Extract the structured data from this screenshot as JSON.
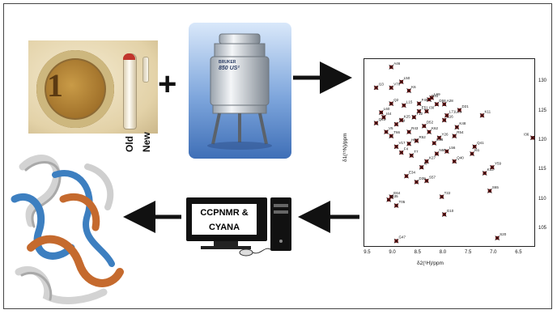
{
  "tubes": {
    "old_label": "Old",
    "new_label": "New"
  },
  "coin": {
    "digit": "1"
  },
  "magnet": {
    "brand": "BRUKER",
    "model": "850 US²"
  },
  "plus_sign": "+",
  "software_box": {
    "line1": "CCPNMR &",
    "line2": "CYANA"
  },
  "colors": {
    "arrow": "#111111",
    "peak": "#8b1a1a",
    "helix": "#3d7fc0",
    "strand": "#c56a2e",
    "coil": "#d6d6d6"
  },
  "chart_data": {
    "type": "scatter",
    "xlabel": "δ2(¹H)/ppm",
    "ylabel": "δ1(¹⁵N)/ppm",
    "xlim": [
      9.6,
      6.2
    ],
    "ylim": [
      134,
      102
    ],
    "xticks": [
      "9.5",
      "9.0",
      "8.5",
      "8.0",
      "7.5",
      "7.0",
      "6.5"
    ],
    "yticks": [
      "105",
      "110",
      "115",
      "120",
      "125",
      "130"
    ],
    "peaks": [
      {
        "label": "S20",
        "x": 6.95,
        "y": 103.5
      },
      {
        "label": "G47",
        "x": 8.95,
        "y": 103.0
      },
      {
        "label": "G10",
        "x": 8.0,
        "y": 107.5
      },
      {
        "label": "T05",
        "x": 8.95,
        "y": 109.0
      },
      {
        "label": "E64",
        "x": 9.05,
        "y": 110.5
      },
      {
        "label": "G35",
        "x": 9.1,
        "y": 110.0
      },
      {
        "label": "T22",
        "x": 8.05,
        "y": 110.5
      },
      {
        "label": "S65",
        "x": 7.1,
        "y": 111.5
      },
      {
        "label": "D39",
        "x": 8.55,
        "y": 113.0
      },
      {
        "label": "S57",
        "x": 8.35,
        "y": 113.2
      },
      {
        "label": "E34",
        "x": 8.75,
        "y": 114.0
      },
      {
        "label": "K33",
        "x": 7.2,
        "y": 114.5
      },
      {
        "label": "Y59",
        "x": 7.05,
        "y": 115.5
      },
      {
        "label": "I8",
        "x": 8.45,
        "y": 115.5
      },
      {
        "label": "K27",
        "x": 8.35,
        "y": 116.5
      },
      {
        "label": "Q40",
        "x": 7.8,
        "y": 116.5
      },
      {
        "label": "F4",
        "x": 8.85,
        "y": 118.0
      },
      {
        "label": "T7",
        "x": 8.65,
        "y": 117.5
      },
      {
        "label": "N60",
        "x": 8.15,
        "y": 117.8
      },
      {
        "label": "L56",
        "x": 7.95,
        "y": 118.2
      },
      {
        "label": "I61",
        "x": 7.45,
        "y": 117.8
      },
      {
        "label": "V17",
        "x": 8.95,
        "y": 119.0
      },
      {
        "label": "Q41",
        "x": 7.4,
        "y": 119.0
      },
      {
        "label": "H68",
        "x": 8.7,
        "y": 119.5
      },
      {
        "label": "R52",
        "x": 8.55,
        "y": 120.0
      },
      {
        "label": "E18",
        "x": 8.2,
        "y": 119.6
      },
      {
        "label": "Y26",
        "x": 8.1,
        "y": 120.5
      },
      {
        "label": "T66",
        "x": 9.05,
        "y": 120.8
      },
      {
        "label": "R54",
        "x": 7.8,
        "y": 120.8
      },
      {
        "label": "V5",
        "x": 9.15,
        "y": 121.5
      },
      {
        "label": "R43",
        "x": 8.7,
        "y": 121.5
      },
      {
        "label": "K62",
        "x": 8.3,
        "y": 121.5
      },
      {
        "label": "K48",
        "x": 7.75,
        "y": 122.3
      },
      {
        "label": "I36",
        "x": 6.25,
        "y": 120.5
      },
      {
        "label": "T14",
        "x": 8.95,
        "y": 122.8
      },
      {
        "label": "D52",
        "x": 8.4,
        "y": 122.5
      },
      {
        "label": "Q45",
        "x": 9.35,
        "y": 123.0
      },
      {
        "label": "K25",
        "x": 8.85,
        "y": 123.5
      },
      {
        "label": "E16",
        "x": 8.0,
        "y": 123.5
      },
      {
        "label": "I44",
        "x": 9.2,
        "y": 124.0
      },
      {
        "label": "T12",
        "x": 8.6,
        "y": 124.0
      },
      {
        "label": "L71Leu",
        "x": 7.95,
        "y": 124.3
      },
      {
        "label": "K11",
        "x": 7.25,
        "y": 124.3
      },
      {
        "label": "L60",
        "x": 9.25,
        "y": 124.8
      },
      {
        "label": "E51",
        "x": 8.5,
        "y": 125.0
      },
      {
        "label": "D21",
        "x": 7.7,
        "y": 125.2
      },
      {
        "label": "I30",
        "x": 8.35,
        "y": 125.0
      },
      {
        "label": "Q2",
        "x": 9.05,
        "y": 126.3
      },
      {
        "label": "L15",
        "x": 8.8,
        "y": 126.0
      },
      {
        "label": "F45",
        "x": 8.5,
        "y": 126.3
      },
      {
        "label": "D58",
        "x": 8.15,
        "y": 126.2
      },
      {
        "label": "A28",
        "x": 8.0,
        "y": 126.2
      },
      {
        "label": "D31",
        "x": 8.3,
        "y": 127.0
      },
      {
        "label": "L69",
        "x": 8.25,
        "y": 127.3
      },
      {
        "label": "K6",
        "x": 8.7,
        "y": 128.5
      },
      {
        "label": "I13",
        "x": 9.35,
        "y": 129.0
      },
      {
        "label": "V70",
        "x": 9.05,
        "y": 129.0
      },
      {
        "label": "L50",
        "x": 8.85,
        "y": 130.0
      },
      {
        "label": "A46",
        "x": 9.05,
        "y": 132.5
      }
    ]
  }
}
